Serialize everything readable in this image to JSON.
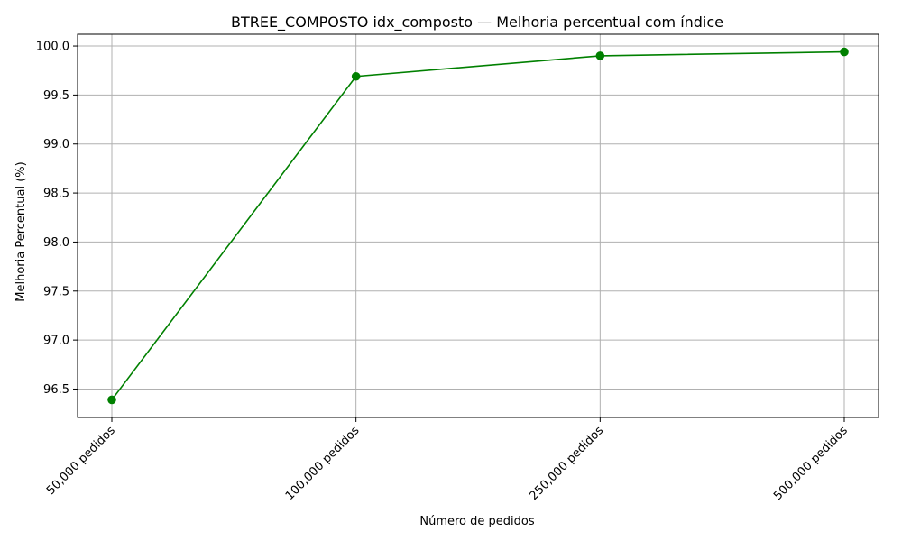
{
  "chart_data": {
    "type": "line",
    "title": "BTREE_COMPOSTO idx_composto — Melhoria percentual com índice",
    "xlabel": "Número de pedidos",
    "ylabel": "Melhoria Percentual (%)",
    "categories": [
      "50,000 pedidos",
      "100,000 pedidos",
      "250,000 pedidos",
      "500,000 pedidos"
    ],
    "series": [
      {
        "values": [
          96.39,
          99.69,
          99.9,
          99.94
        ],
        "color": "#008000",
        "marker": "circle"
      }
    ],
    "ylim": [
      96.21,
      100.12
    ],
    "yticks": [
      96.5,
      97.0,
      97.5,
      98.0,
      98.5,
      99.0,
      99.5,
      100.0
    ],
    "ytick_labels": [
      "96.5",
      "97.0",
      "97.5",
      "98.0",
      "98.5",
      "99.0",
      "99.5",
      "100.0"
    ],
    "grid": true,
    "legend": false
  }
}
